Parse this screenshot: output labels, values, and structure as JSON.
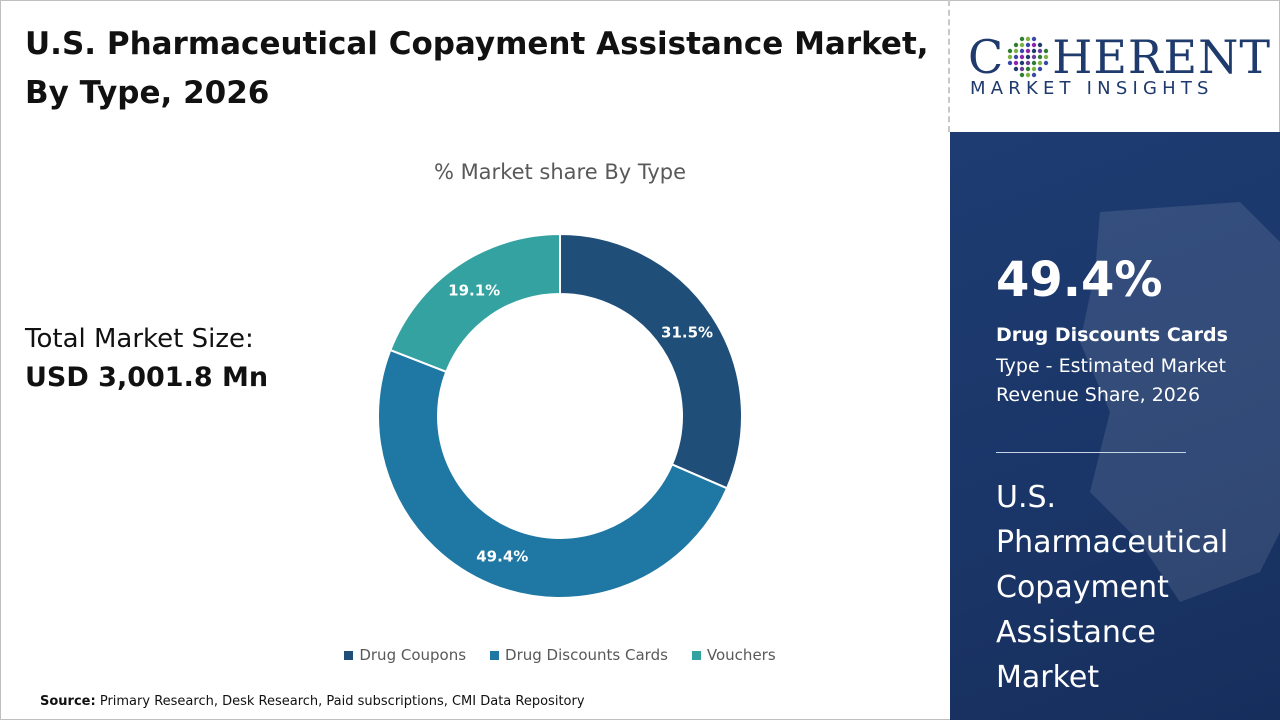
{
  "header": {
    "title": "U.S. Pharmaceutical Copayment Assistance Market, By Type, 2026"
  },
  "market_size": {
    "label": "Total Market Size:",
    "value": "USD 3,001.8 Mn"
  },
  "logo": {
    "word_prefix": "C",
    "word_suffix": "HERENT",
    "subtitle": "MARKET INSIGHTS"
  },
  "highlight": {
    "percent": "49.4%",
    "name": "Drug Discounts Cards",
    "description": "Type - Estimated Market Revenue Share, 2026",
    "market_name": "U.S. Pharmaceutical Copayment Assistance Market"
  },
  "source": {
    "label": "Source:",
    "text": "Primary Research, Desk Research, Paid subscriptions, CMI Data Repository"
  },
  "colors": {
    "drug_coupons": "#1f4e79",
    "drug_discounts_cards": "#1f77a3",
    "vouchers": "#35a2a2",
    "panel": "#1e3c72",
    "brand": "#1f3a6d"
  },
  "chart_data": {
    "type": "pie",
    "title": "% Market share By Type",
    "legend_position": "bottom",
    "categories": [
      "Drug Coupons",
      "Drug Discounts Cards",
      "Vouchers"
    ],
    "values": [
      31.5,
      49.4,
      19.1
    ],
    "labels": [
      "31.5%",
      "49.4%",
      "19.1%"
    ],
    "donut": true
  }
}
